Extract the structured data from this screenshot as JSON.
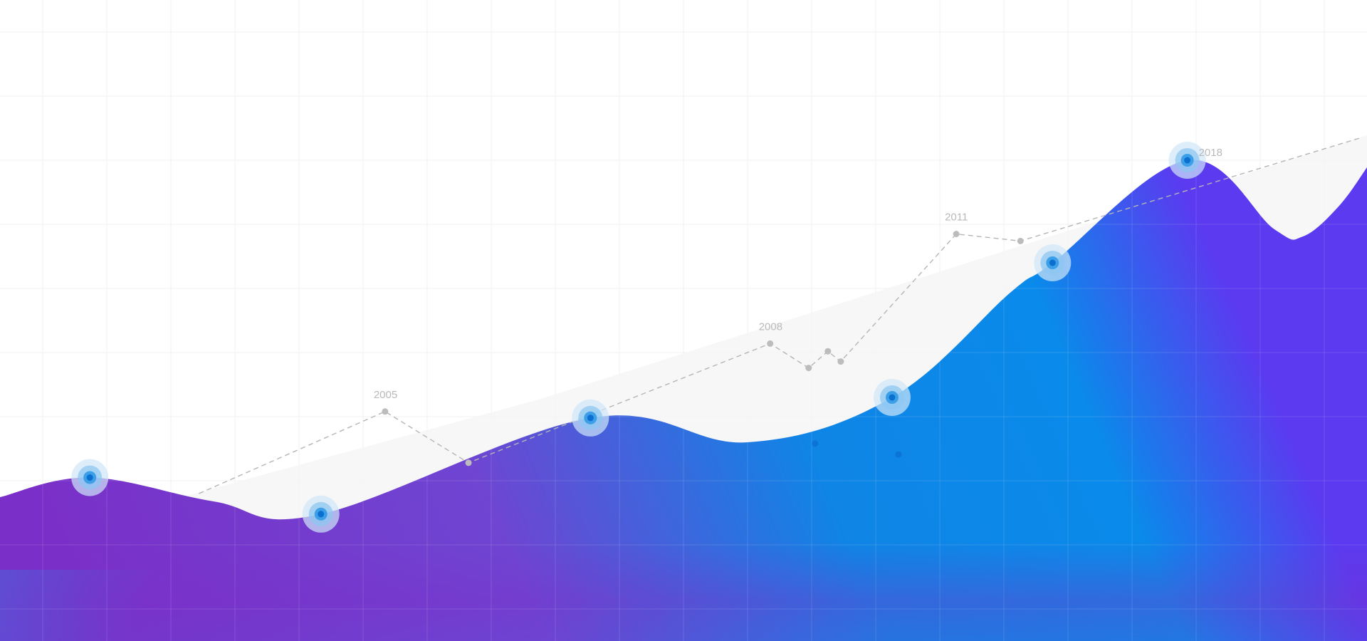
{
  "chart_data": {
    "type": "area",
    "title": "",
    "xlabel": "",
    "ylabel": "",
    "grid": true,
    "x_range": [
      2000.5,
      2021.8
    ],
    "y_range": [
      0,
      100
    ],
    "tick_labels": [
      "2005",
      "2008",
      "2011",
      "2018"
    ],
    "series": [
      {
        "kind": "area",
        "highlight_points": [
          {
            "x": 2001.9,
            "y": 25.5
          },
          {
            "x": 2005.5,
            "y": 19.8
          },
          {
            "x": 2009.7,
            "y": 34.8
          },
          {
            "x": 2014.4,
            "y": 38.0
          },
          {
            "x": 2016.9,
            "y": 59.0
          },
          {
            "x": 2019.0,
            "y": 75.0
          }
        ],
        "small_points": [
          {
            "x": 2013.2,
            "y": 30.8
          },
          {
            "x": 2014.5,
            "y": 29.1
          }
        ],
        "gradient_colors": [
          "#7b2fc9",
          "#008bea",
          "#5a35f0"
        ]
      },
      {
        "kind": "line",
        "style": "dashed",
        "points": [
          {
            "x": 2003.6,
            "y": 23.0
          },
          {
            "x": 2006.5,
            "y": 35.8
          },
          {
            "x": 2007.8,
            "y": 27.8
          },
          {
            "x": 2012.5,
            "y": 46.4
          },
          {
            "x": 2013.1,
            "y": 42.6
          },
          {
            "x": 2013.4,
            "y": 45.2
          },
          {
            "x": 2013.6,
            "y": 43.6
          },
          {
            "x": 2015.4,
            "y": 63.5
          },
          {
            "x": 2016.4,
            "y": 62.4
          },
          {
            "x": 2021.7,
            "y": 78.5
          }
        ],
        "labeled_points": [
          {
            "x": 2006.5,
            "y": 35.8,
            "label": "2005"
          },
          {
            "x": 2012.5,
            "y": 46.4,
            "label": "2008"
          },
          {
            "x": 2015.4,
            "y": 63.5,
            "label": "2011"
          },
          {
            "x": 2019.0,
            "y": 75.0,
            "label": "2018"
          }
        ],
        "color": "#b5b5b5"
      }
    ]
  }
}
